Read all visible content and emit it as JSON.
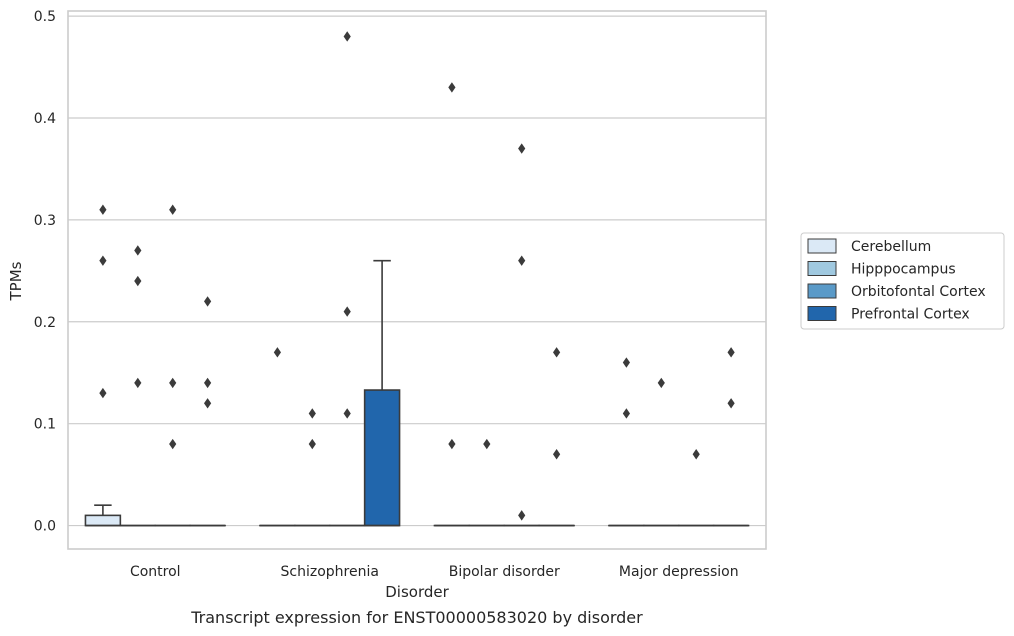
{
  "caption": "Transcript expression for ENST00000583020 by disorder",
  "chart_data": {
    "type": "box",
    "xlabel": "Disorder",
    "ylabel": "TPMs",
    "ylim": [
      -0.023,
      0.505
    ],
    "yticks": [
      "0.0",
      "0.1",
      "0.2",
      "0.3",
      "0.4",
      "0.5"
    ],
    "categories": [
      "Control",
      "Schizophrenia",
      "Bipolar disorder",
      "Major depression"
    ],
    "grid": "horizontal",
    "legend_position": "right",
    "series": [
      {
        "name": "Cerebellum",
        "color": "#dbe9f6",
        "boxes": [
          {
            "q1": 0.0,
            "median": 0.0,
            "q3": 0.01,
            "whisker_low": 0.0,
            "whisker_high": 0.02,
            "outliers": [
              0.26,
              0.31,
              0.13
            ]
          },
          {
            "q1": 0.0,
            "median": 0.0,
            "q3": 0.0,
            "whisker_low": 0.0,
            "whisker_high": 0.0,
            "outliers": [
              0.17
            ]
          },
          {
            "q1": 0.0,
            "median": 0.0,
            "q3": 0.0,
            "whisker_low": 0.0,
            "whisker_high": 0.0,
            "outliers": [
              0.43,
              0.08
            ]
          },
          {
            "q1": 0.0,
            "median": 0.0,
            "q3": 0.0,
            "whisker_low": 0.0,
            "whisker_high": 0.0,
            "outliers": [
              0.16,
              0.11
            ]
          }
        ]
      },
      {
        "name": "Hipppocampus",
        "color": "#a0c9e0",
        "boxes": [
          {
            "q1": 0.0,
            "median": 0.0,
            "q3": 0.0,
            "whisker_low": 0.0,
            "whisker_high": 0.0,
            "outliers": [
              0.27,
              0.24,
              0.14
            ]
          },
          {
            "q1": 0.0,
            "median": 0.0,
            "q3": 0.0,
            "whisker_low": 0.0,
            "whisker_high": 0.0,
            "outliers": [
              0.11,
              0.08
            ]
          },
          {
            "q1": 0.0,
            "median": 0.0,
            "q3": 0.0,
            "whisker_low": 0.0,
            "whisker_high": 0.0,
            "outliers": [
              0.08
            ]
          },
          {
            "q1": 0.0,
            "median": 0.0,
            "q3": 0.0,
            "whisker_low": 0.0,
            "whisker_high": 0.0,
            "outliers": [
              0.14
            ]
          }
        ]
      },
      {
        "name": "Orbitofontal Cortex",
        "color": "#5a9ac8",
        "boxes": [
          {
            "q1": 0.0,
            "median": 0.0,
            "q3": 0.0,
            "whisker_low": 0.0,
            "whisker_high": 0.0,
            "outliers": [
              0.31,
              0.14,
              0.08
            ]
          },
          {
            "q1": 0.0,
            "median": 0.0,
            "q3": 0.0,
            "whisker_low": 0.0,
            "whisker_high": 0.0,
            "outliers": [
              0.48,
              0.21,
              0.11
            ]
          },
          {
            "q1": 0.0,
            "median": 0.0,
            "q3": 0.0,
            "whisker_low": 0.0,
            "whisker_high": 0.0,
            "outliers": [
              0.37,
              0.26,
              0.01
            ]
          },
          {
            "q1": 0.0,
            "median": 0.0,
            "q3": 0.0,
            "whisker_low": 0.0,
            "whisker_high": 0.0,
            "outliers": [
              0.07
            ]
          }
        ]
      },
      {
        "name": "Prefrontal Cortex",
        "color": "#2166ac",
        "boxes": [
          {
            "q1": 0.0,
            "median": 0.0,
            "q3": 0.0,
            "whisker_low": 0.0,
            "whisker_high": 0.0,
            "outliers": [
              0.22,
              0.14,
              0.12
            ]
          },
          {
            "q1": 0.0,
            "median": 0.0,
            "q3": 0.133,
            "whisker_low": 0.0,
            "whisker_high": 0.26,
            "outliers": []
          },
          {
            "q1": 0.0,
            "median": 0.0,
            "q3": 0.0,
            "whisker_low": 0.0,
            "whisker_high": 0.0,
            "outliers": [
              0.17,
              0.07
            ]
          },
          {
            "q1": 0.0,
            "median": 0.0,
            "q3": 0.0,
            "whisker_low": 0.0,
            "whisker_high": 0.0,
            "outliers": [
              0.17,
              0.12
            ]
          }
        ]
      }
    ]
  }
}
